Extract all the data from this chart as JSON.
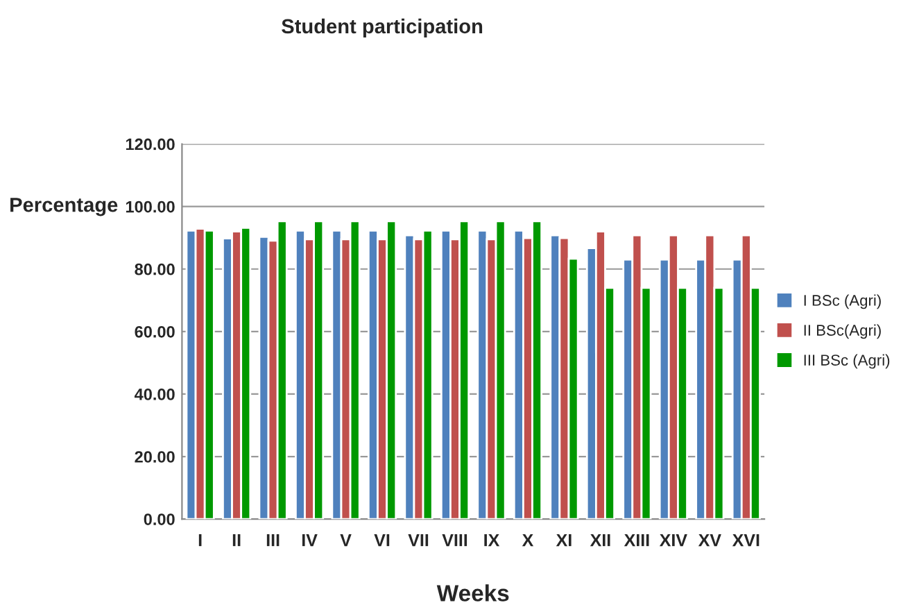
{
  "chart_data": {
    "type": "bar",
    "title": "Student participation",
    "xlabel": "Weeks",
    "ylabel": "Percentage",
    "categories": [
      "I",
      "II",
      "III",
      "IV",
      "V",
      "VI",
      "VII",
      "VIII",
      "IX",
      "X",
      "XI",
      "XII",
      "XIII",
      "XIV",
      "XV",
      "XVI"
    ],
    "series": [
      {
        "name": "I BSc (Agri)",
        "color": "#4f81bd",
        "values": [
          92.3,
          89.8,
          90.3,
          92.3,
          92.3,
          92.3,
          90.8,
          92.3,
          92.3,
          92.3,
          90.8,
          86.7,
          83.0,
          83.0,
          83.0,
          83.0
        ]
      },
      {
        "name": "II BSc(Agri)",
        "color": "#c0504d",
        "values": [
          92.9,
          92.0,
          89.1,
          89.5,
          89.5,
          89.5,
          89.5,
          89.5,
          89.5,
          89.9,
          89.9,
          92.0,
          90.8,
          90.8,
          90.8,
          90.8
        ]
      },
      {
        "name": "III BSc (Agri)",
        "color": "#009900",
        "values": [
          92.3,
          93.2,
          95.3,
          95.3,
          95.3,
          95.3,
          92.3,
          95.3,
          95.3,
          95.3,
          83.3,
          74.0,
          74.0,
          74.0,
          74.0,
          74.0
        ]
      }
    ],
    "ylim": [
      0,
      120
    ],
    "yticks": [
      {
        "value": 0,
        "label": "0.00"
      },
      {
        "value": 20,
        "label": "20.00"
      },
      {
        "value": 40,
        "label": "40.00"
      },
      {
        "value": 60,
        "label": "60.00"
      },
      {
        "value": 80,
        "label": "80.00"
      },
      {
        "value": 100,
        "label": "100.00"
      },
      {
        "value": 120,
        "label": "120.00"
      }
    ],
    "grid": "y",
    "legend": "right"
  }
}
